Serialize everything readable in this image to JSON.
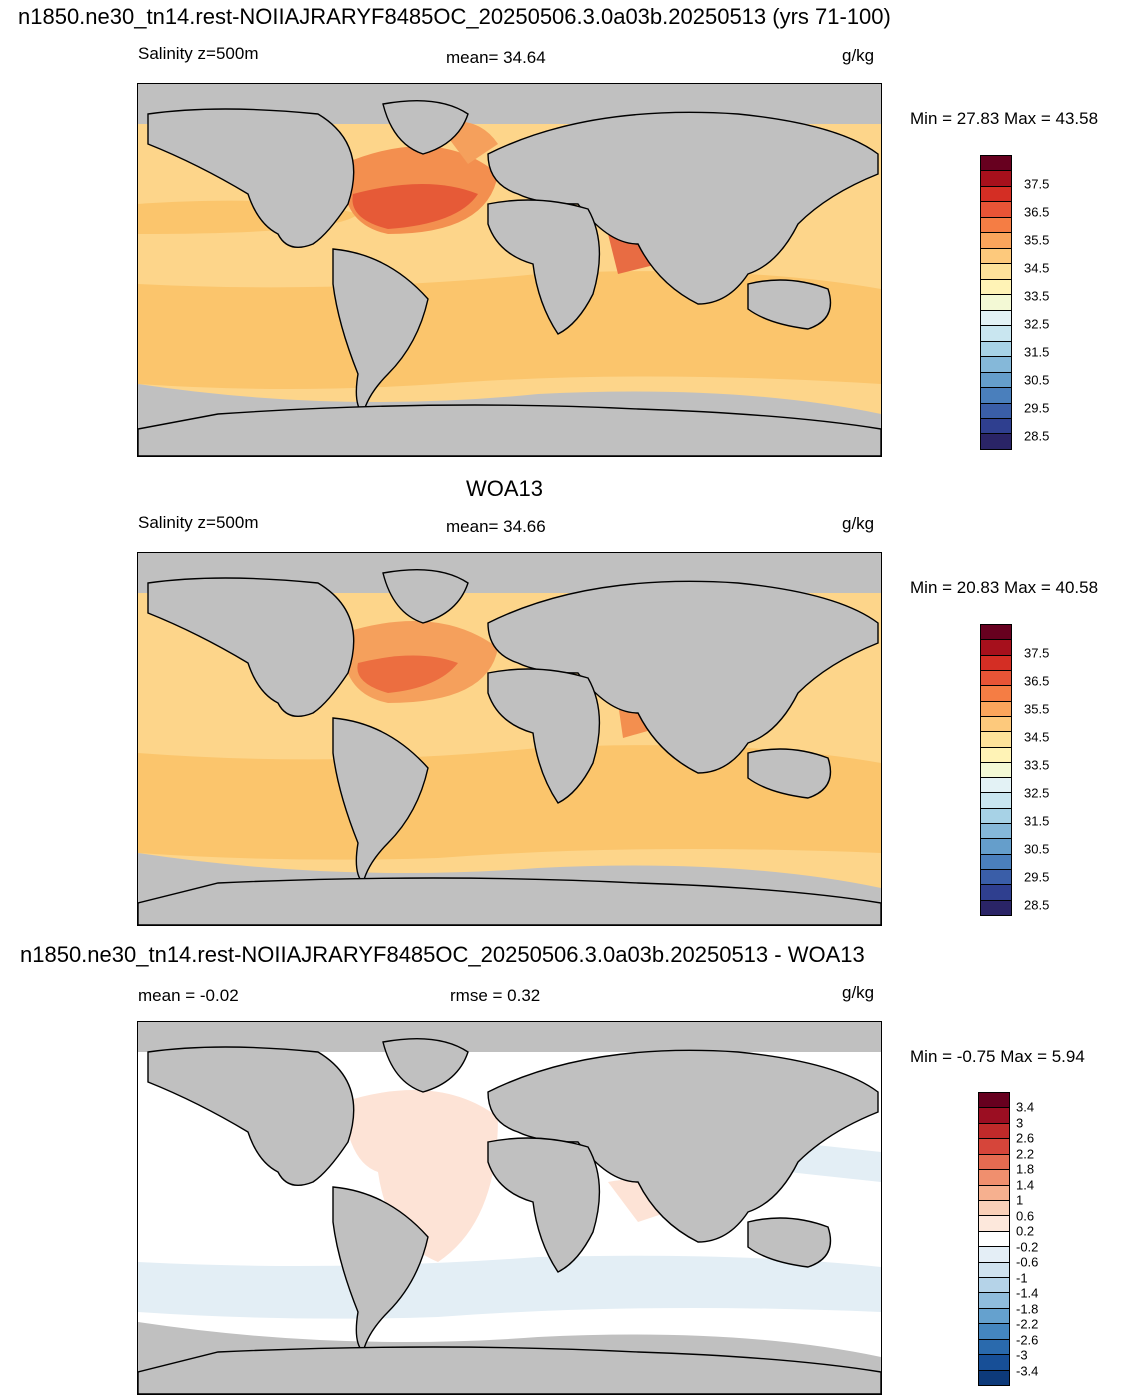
{
  "panel1": {
    "title": "n1850.ne30_tn14.rest-NOIIAJRARYF8485OC_20250506.3.0a03b.20250513 (yrs 71-100)",
    "left": "Salinity z=500m",
    "center": "mean=  34.64",
    "units": "g/kg",
    "minmax": "Min =  27.83 Max =  43.58",
    "colorbar": {
      "labels": [
        "37.5",
        "36.5",
        "35.5",
        "34.5",
        "33.5",
        "32.5",
        "31.5",
        "30.5",
        "29.5",
        "28.5"
      ],
      "colors": [
        "#67001f",
        "#a6101c",
        "#d42e24",
        "#e85436",
        "#f57d44",
        "#fba55c",
        "#fdc97c",
        "#fee29a",
        "#fff3b6",
        "#f3f9d5",
        "#e3f2f5",
        "#c9e6f0",
        "#a7d2e6",
        "#85b8d9",
        "#659ecb",
        "#4a7fbc",
        "#3a5ea8",
        "#2f3f8f",
        "#2a2466"
      ]
    }
  },
  "panel2": {
    "title": "WOA13",
    "left": "Salinity z=500m",
    "center": "mean=  34.66",
    "units": "g/kg",
    "minmax": "Min =  20.83 Max =  40.58",
    "colorbar": {
      "labels": [
        "37.5",
        "36.5",
        "35.5",
        "34.5",
        "33.5",
        "32.5",
        "31.5",
        "30.5",
        "29.5",
        "28.5"
      ],
      "colors": [
        "#67001f",
        "#a6101c",
        "#d42e24",
        "#e85436",
        "#f57d44",
        "#fba55c",
        "#fdc97c",
        "#fee29a",
        "#fff3b6",
        "#f3f9d5",
        "#e3f2f5",
        "#c9e6f0",
        "#a7d2e6",
        "#85b8d9",
        "#659ecb",
        "#4a7fbc",
        "#3a5ea8",
        "#2f3f8f",
        "#2a2466"
      ]
    }
  },
  "panel3": {
    "title": "n1850.ne30_tn14.rest-NOIIAJRARYF8485OC_20250506.3.0a03b.20250513 - WOA13",
    "left": "mean =  -0.02",
    "center": "rmse =   0.32",
    "units": "g/kg",
    "minmax": "Min =  -0.75 Max =   5.94",
    "colorbar": {
      "labels": [
        "3.4",
        "3",
        "2.6",
        "2.2",
        "1.8",
        "1.4",
        "1",
        "0.6",
        "0.2",
        "-0.2",
        "-0.6",
        "-1",
        "-1.4",
        "-1.8",
        "-2.2",
        "-2.6",
        "-3",
        "-3.4"
      ],
      "colors": [
        "#67001f",
        "#9b0e22",
        "#c02a2a",
        "#d6453a",
        "#e56b51",
        "#f08f6e",
        "#f6b08f",
        "#fad0b8",
        "#fde8dc",
        "#ffffff",
        "#e4eef6",
        "#cfe2ef",
        "#b5d3e8",
        "#8fbcdc",
        "#65a1ce",
        "#4486bf",
        "#2a6aad",
        "#174f97",
        "#0d3a7a"
      ]
    }
  }
}
